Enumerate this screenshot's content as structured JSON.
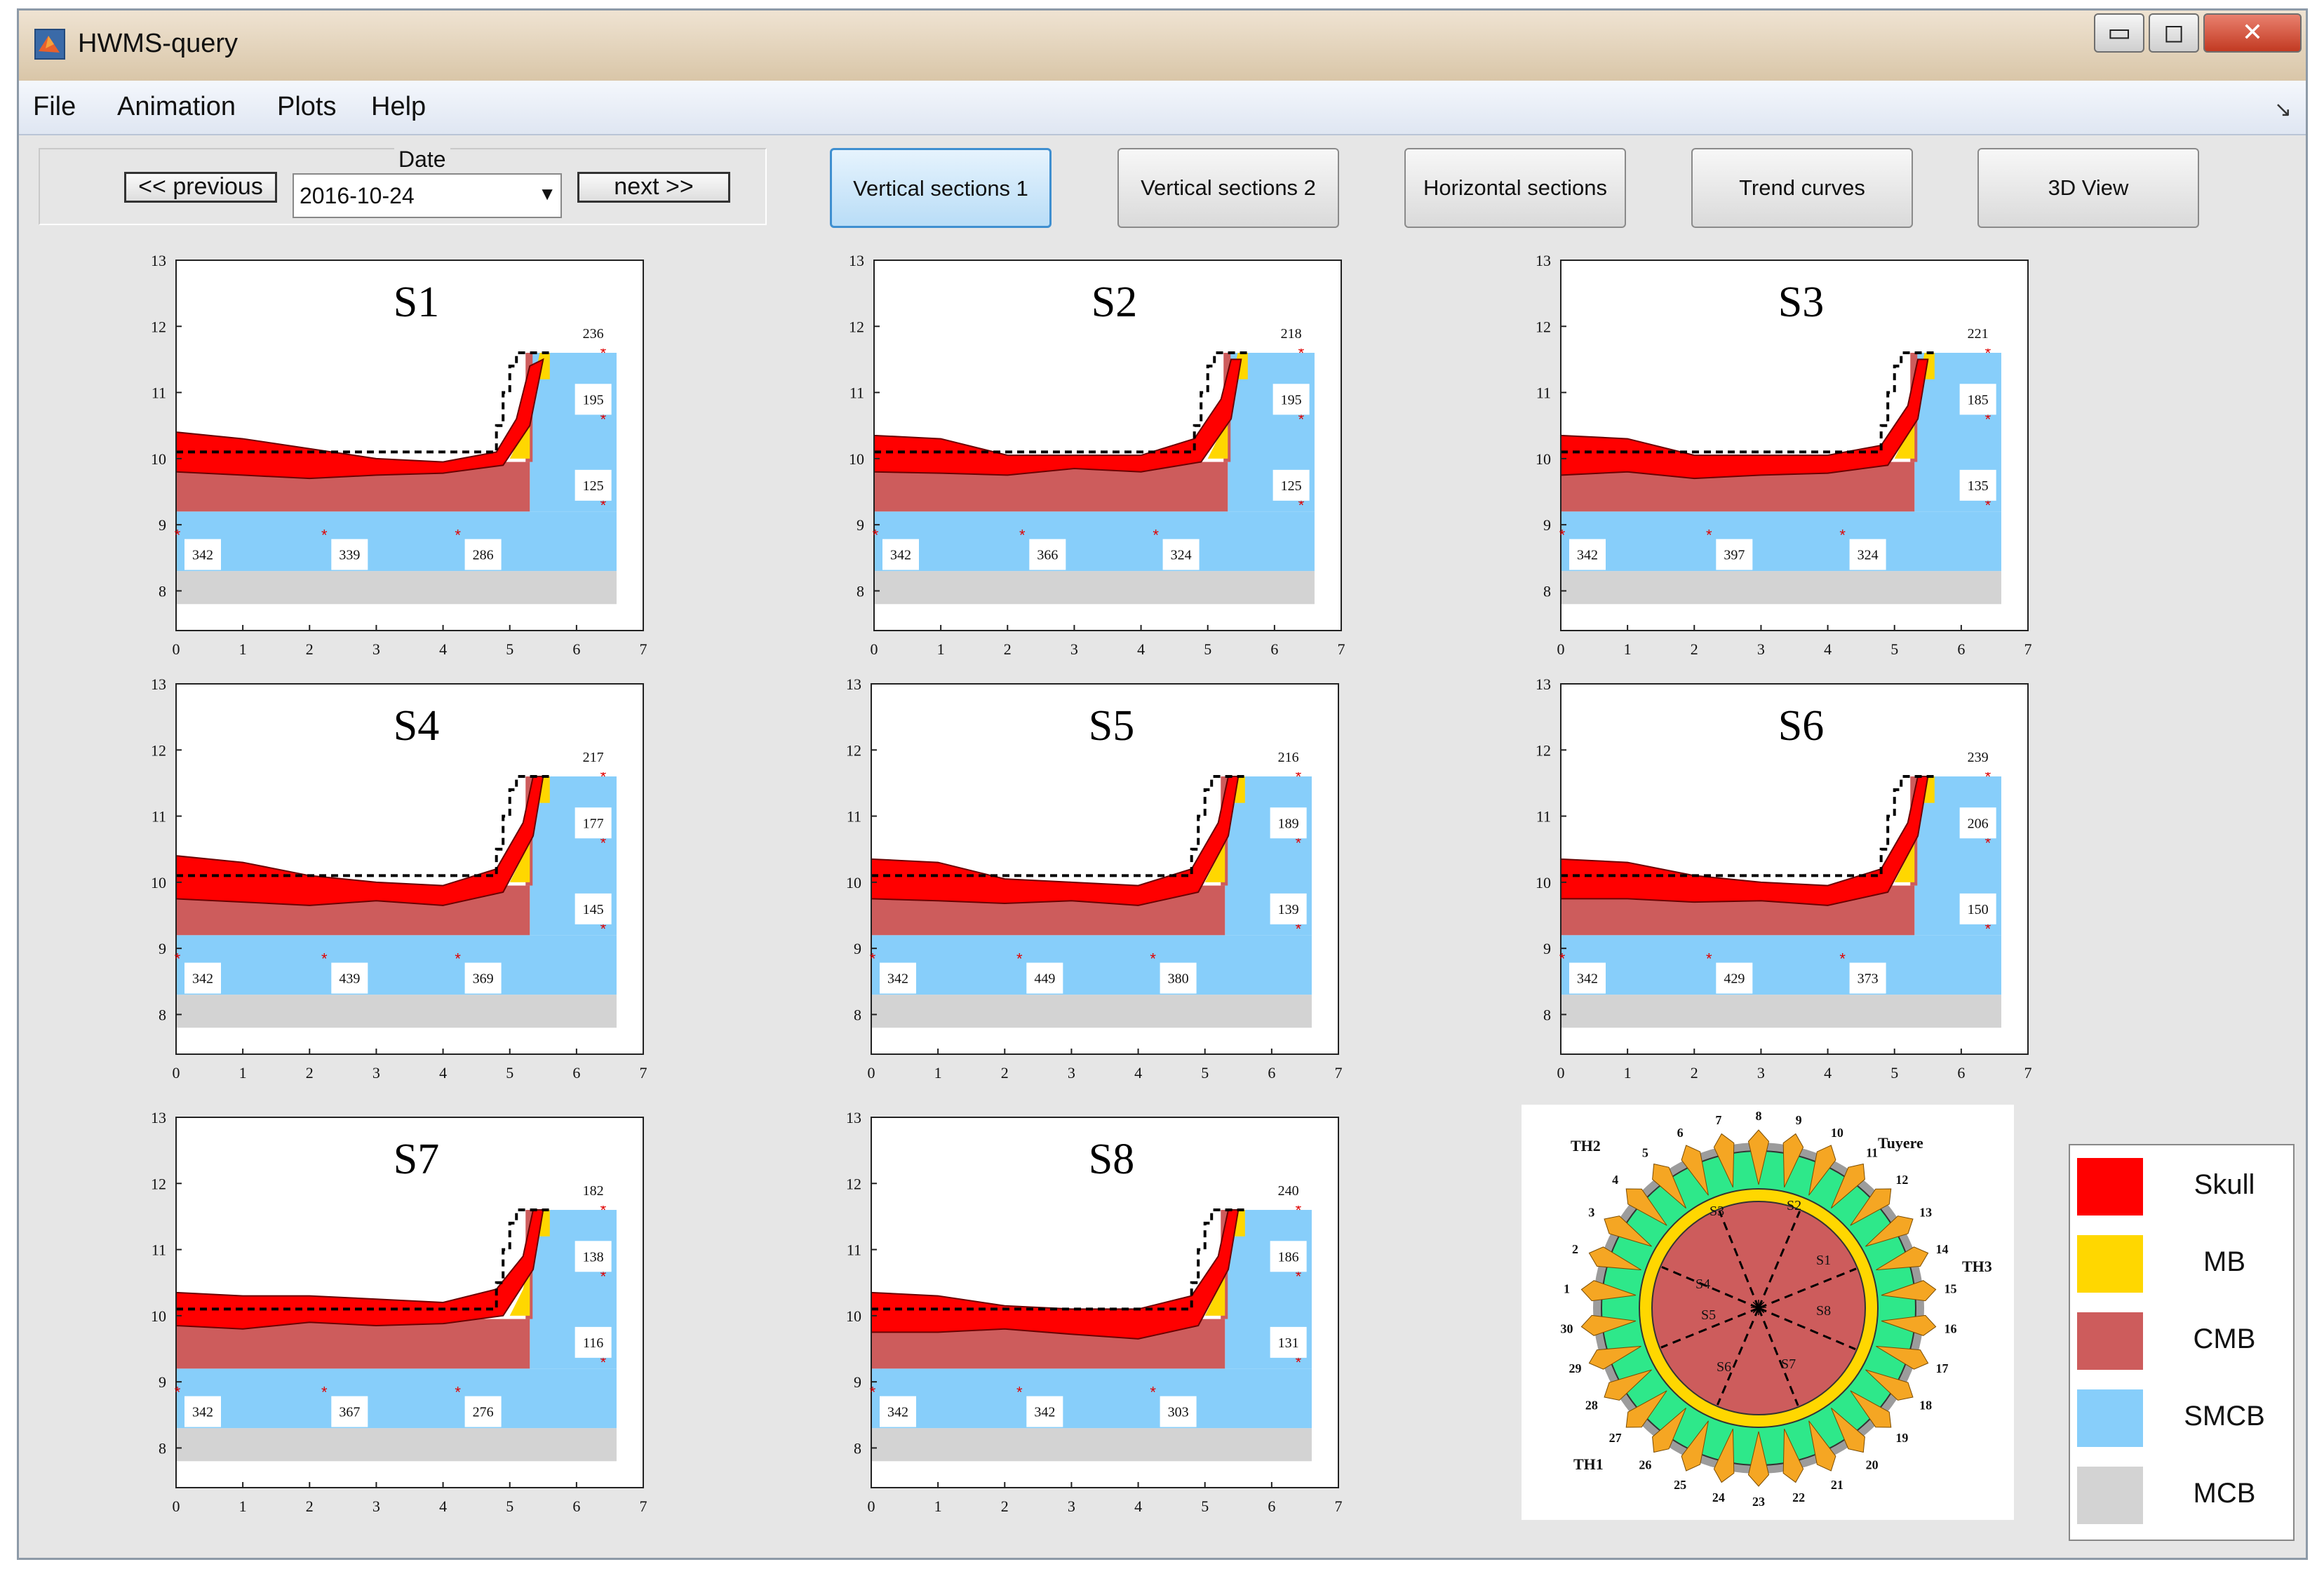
{
  "window": {
    "title": "HWMS-query",
    "controls": {
      "minimize": "▭",
      "maximize": "◻",
      "close": "✕"
    }
  },
  "menu": [
    "File",
    "Animation",
    "Plots",
    "Help"
  ],
  "toolbar": {
    "date_label": "Date",
    "previous_label": "<< previous",
    "date_value": "2016-10-24",
    "next_label": "next >>"
  },
  "tabs": [
    {
      "label": "Vertical sections 1",
      "active": true
    },
    {
      "label": "Vertical sections 2",
      "active": false
    },
    {
      "label": "Horizontal sections",
      "active": false
    },
    {
      "label": "Trend curves",
      "active": false
    },
    {
      "label": "3D View",
      "active": false
    }
  ],
  "colors": {
    "skull": "#ff0000",
    "mb": "#ffd700",
    "cmb": "#cd5c5c",
    "smcb": "#87cefa",
    "mcb": "#d3d3d3",
    "cooling_box": "#2ee88a",
    "tuyere": "#f5a623"
  },
  "legend": [
    {
      "label": "Skull",
      "color": "#ff0000"
    },
    {
      "label": "MB",
      "color": "#ffd700"
    },
    {
      "label": "CMB",
      "color": "#cd5c5c"
    },
    {
      "label": "SMCB",
      "color": "#87cefa"
    },
    {
      "label": "MCB",
      "color": "#d3d3d3"
    }
  ],
  "chart_data": [
    {
      "type": "area",
      "title": "S1",
      "xlim": [
        0,
        7
      ],
      "ylim": [
        7.4,
        13
      ],
      "xticks": [
        0,
        1,
        2,
        3,
        4,
        5,
        6,
        7
      ],
      "yticks": [
        8,
        9,
        10,
        11,
        12,
        13
      ],
      "wall_readings": [
        {
          "label": "236",
          "y": 11.6
        },
        {
          "label": "195",
          "y": 10.6
        },
        {
          "label": "125",
          "y": 9.3
        }
      ],
      "bottom_readings": [
        {
          "label": "342",
          "x": 0
        },
        {
          "label": "339",
          "x": 2.2
        },
        {
          "label": "286",
          "x": 4.2
        }
      ],
      "skull_top": [
        [
          0,
          10.4
        ],
        [
          1,
          10.3
        ],
        [
          2,
          10.15
        ],
        [
          3,
          10.0
        ],
        [
          4,
          9.95
        ],
        [
          4.8,
          10.1
        ],
        [
          5.1,
          10.6
        ],
        [
          5.3,
          11.4
        ]
      ],
      "skull_bottom": [
        [
          0,
          9.8
        ],
        [
          1,
          9.75
        ],
        [
          2,
          9.7
        ],
        [
          3,
          9.75
        ],
        [
          4,
          9.78
        ],
        [
          4.9,
          9.9
        ],
        [
          5.3,
          10.5
        ],
        [
          5.5,
          11.5
        ]
      ],
      "dashed_profile": [
        [
          0,
          10.1
        ],
        [
          4.8,
          10.1
        ],
        [
          4.8,
          10.5
        ],
        [
          4.9,
          10.5
        ],
        [
          4.9,
          11.0
        ],
        [
          5.0,
          11.0
        ],
        [
          5.0,
          11.4
        ],
        [
          5.1,
          11.4
        ],
        [
          5.1,
          11.6
        ],
        [
          5.6,
          11.6
        ]
      ]
    },
    {
      "type": "area",
      "title": "S2",
      "xlim": [
        0,
        7
      ],
      "ylim": [
        7.4,
        13
      ],
      "xticks": [
        0,
        1,
        2,
        3,
        4,
        5,
        6,
        7
      ],
      "yticks": [
        8,
        9,
        10,
        11,
        12,
        13
      ],
      "wall_readings": [
        {
          "label": "218",
          "y": 11.6
        },
        {
          "label": "195",
          "y": 10.6
        },
        {
          "label": "125",
          "y": 9.3
        }
      ],
      "bottom_readings": [
        {
          "label": "342",
          "x": 0
        },
        {
          "label": "366",
          "x": 2.2
        },
        {
          "label": "324",
          "x": 4.2
        }
      ],
      "skull_top": [
        [
          0,
          10.35
        ],
        [
          1,
          10.3
        ],
        [
          2,
          10.05
        ],
        [
          3,
          10.05
        ],
        [
          4,
          10.05
        ],
        [
          4.8,
          10.3
        ],
        [
          5.2,
          10.9
        ],
        [
          5.35,
          11.5
        ]
      ],
      "skull_bottom": [
        [
          0,
          9.8
        ],
        [
          1,
          9.78
        ],
        [
          2,
          9.75
        ],
        [
          3,
          9.85
        ],
        [
          4,
          9.8
        ],
        [
          4.9,
          9.95
        ],
        [
          5.35,
          10.6
        ],
        [
          5.5,
          11.5
        ]
      ],
      "dashed_profile": [
        [
          0,
          10.1
        ],
        [
          4.8,
          10.1
        ],
        [
          4.8,
          10.5
        ],
        [
          4.9,
          10.5
        ],
        [
          4.9,
          11.0
        ],
        [
          5.0,
          11.0
        ],
        [
          5.0,
          11.4
        ],
        [
          5.1,
          11.4
        ],
        [
          5.1,
          11.6
        ],
        [
          5.6,
          11.6
        ]
      ]
    },
    {
      "type": "area",
      "title": "S3",
      "xlim": [
        0,
        7
      ],
      "ylim": [
        7.4,
        13
      ],
      "xticks": [
        0,
        1,
        2,
        3,
        4,
        5,
        6,
        7
      ],
      "yticks": [
        8,
        9,
        10,
        11,
        12,
        13
      ],
      "wall_readings": [
        {
          "label": "221",
          "y": 11.6
        },
        {
          "label": "185",
          "y": 10.6
        },
        {
          "label": "135",
          "y": 9.3
        }
      ],
      "bottom_readings": [
        {
          "label": "342",
          "x": 0
        },
        {
          "label": "397",
          "x": 2.2
        },
        {
          "label": "324",
          "x": 4.2
        }
      ],
      "skull_top": [
        [
          0,
          10.35
        ],
        [
          1,
          10.3
        ],
        [
          2,
          10.05
        ],
        [
          3,
          10.05
        ],
        [
          4,
          10.05
        ],
        [
          4.8,
          10.2
        ],
        [
          5.2,
          10.8
        ],
        [
          5.35,
          11.5
        ]
      ],
      "skull_bottom": [
        [
          0,
          9.75
        ],
        [
          1,
          9.8
        ],
        [
          2,
          9.7
        ],
        [
          3,
          9.75
        ],
        [
          4,
          9.78
        ],
        [
          4.9,
          9.9
        ],
        [
          5.35,
          10.6
        ],
        [
          5.5,
          11.5
        ]
      ],
      "dashed_profile": [
        [
          0,
          10.1
        ],
        [
          4.8,
          10.1
        ],
        [
          4.8,
          10.5
        ],
        [
          4.9,
          10.5
        ],
        [
          4.9,
          11.0
        ],
        [
          5.0,
          11.0
        ],
        [
          5.0,
          11.4
        ],
        [
          5.1,
          11.4
        ],
        [
          5.1,
          11.6
        ],
        [
          5.6,
          11.6
        ]
      ]
    },
    {
      "type": "area",
      "title": "S4",
      "xlim": [
        0,
        7
      ],
      "ylim": [
        7.4,
        13
      ],
      "xticks": [
        0,
        1,
        2,
        3,
        4,
        5,
        6,
        7
      ],
      "yticks": [
        8,
        9,
        10,
        11,
        12,
        13
      ],
      "wall_readings": [
        {
          "label": "217",
          "y": 11.6
        },
        {
          "label": "177",
          "y": 10.6
        },
        {
          "label": "145",
          "y": 9.3
        }
      ],
      "bottom_readings": [
        {
          "label": "342",
          "x": 0
        },
        {
          "label": "439",
          "x": 2.2
        },
        {
          "label": "369",
          "x": 4.2
        }
      ],
      "skull_top": [
        [
          0,
          10.4
        ],
        [
          1,
          10.3
        ],
        [
          2,
          10.1
        ],
        [
          3,
          10.0
        ],
        [
          4,
          9.95
        ],
        [
          4.8,
          10.2
        ],
        [
          5.2,
          10.9
        ],
        [
          5.35,
          11.6
        ]
      ],
      "skull_bottom": [
        [
          0,
          9.75
        ],
        [
          1,
          9.7
        ],
        [
          2,
          9.65
        ],
        [
          3,
          9.72
        ],
        [
          4,
          9.65
        ],
        [
          4.9,
          9.85
        ],
        [
          5.35,
          10.7
        ],
        [
          5.5,
          11.6
        ]
      ],
      "dashed_profile": [
        [
          0,
          10.1
        ],
        [
          4.8,
          10.1
        ],
        [
          4.8,
          10.5
        ],
        [
          4.9,
          10.5
        ],
        [
          4.9,
          11.0
        ],
        [
          5.0,
          11.0
        ],
        [
          5.0,
          11.4
        ],
        [
          5.1,
          11.4
        ],
        [
          5.1,
          11.6
        ],
        [
          5.6,
          11.6
        ]
      ]
    },
    {
      "type": "area",
      "title": "S5",
      "xlim": [
        0,
        7
      ],
      "ylim": [
        7.4,
        13
      ],
      "xticks": [
        0,
        1,
        2,
        3,
        4,
        5,
        6,
        7
      ],
      "yticks": [
        8,
        9,
        10,
        11,
        12,
        13
      ],
      "wall_readings": [
        {
          "label": "216",
          "y": 11.6
        },
        {
          "label": "189",
          "y": 10.6
        },
        {
          "label": "139",
          "y": 9.3
        }
      ],
      "bottom_readings": [
        {
          "label": "342",
          "x": 0
        },
        {
          "label": "449",
          "x": 2.2
        },
        {
          "label": "380",
          "x": 4.2
        }
      ],
      "skull_top": [
        [
          0,
          10.35
        ],
        [
          1,
          10.3
        ],
        [
          2,
          10.05
        ],
        [
          3,
          10.0
        ],
        [
          4,
          9.95
        ],
        [
          4.8,
          10.2
        ],
        [
          5.2,
          10.9
        ],
        [
          5.35,
          11.6
        ]
      ],
      "skull_bottom": [
        [
          0,
          9.75
        ],
        [
          1,
          9.72
        ],
        [
          2,
          9.68
        ],
        [
          3,
          9.72
        ],
        [
          4,
          9.65
        ],
        [
          4.9,
          9.85
        ],
        [
          5.35,
          10.7
        ],
        [
          5.5,
          11.6
        ]
      ],
      "dashed_profile": [
        [
          0,
          10.1
        ],
        [
          4.8,
          10.1
        ],
        [
          4.8,
          10.5
        ],
        [
          4.9,
          10.5
        ],
        [
          4.9,
          11.0
        ],
        [
          5.0,
          11.0
        ],
        [
          5.0,
          11.4
        ],
        [
          5.1,
          11.4
        ],
        [
          5.1,
          11.6
        ],
        [
          5.6,
          11.6
        ]
      ]
    },
    {
      "type": "area",
      "title": "S6",
      "xlim": [
        0,
        7
      ],
      "ylim": [
        7.4,
        13
      ],
      "xticks": [
        0,
        1,
        2,
        3,
        4,
        5,
        6,
        7
      ],
      "yticks": [
        8,
        9,
        10,
        11,
        12,
        13
      ],
      "wall_readings": [
        {
          "label": "239",
          "y": 11.6
        },
        {
          "label": "206",
          "y": 10.6
        },
        {
          "label": "150",
          "y": 9.3
        }
      ],
      "bottom_readings": [
        {
          "label": "342",
          "x": 0
        },
        {
          "label": "429",
          "x": 2.2
        },
        {
          "label": "373",
          "x": 4.2
        }
      ],
      "skull_top": [
        [
          0,
          10.35
        ],
        [
          1,
          10.3
        ],
        [
          2,
          10.1
        ],
        [
          3,
          10.0
        ],
        [
          4,
          9.95
        ],
        [
          4.8,
          10.2
        ],
        [
          5.2,
          10.9
        ],
        [
          5.35,
          11.6
        ]
      ],
      "skull_bottom": [
        [
          0,
          9.75
        ],
        [
          1,
          9.75
        ],
        [
          2,
          9.7
        ],
        [
          3,
          9.72
        ],
        [
          4,
          9.65
        ],
        [
          4.9,
          9.85
        ],
        [
          5.35,
          10.7
        ],
        [
          5.5,
          11.6
        ]
      ],
      "dashed_profile": [
        [
          0,
          10.1
        ],
        [
          4.8,
          10.1
        ],
        [
          4.8,
          10.5
        ],
        [
          4.9,
          10.5
        ],
        [
          4.9,
          11.0
        ],
        [
          5.0,
          11.0
        ],
        [
          5.0,
          11.4
        ],
        [
          5.1,
          11.4
        ],
        [
          5.1,
          11.6
        ],
        [
          5.6,
          11.6
        ]
      ]
    },
    {
      "type": "area",
      "title": "S7",
      "xlim": [
        0,
        7
      ],
      "ylim": [
        7.4,
        13
      ],
      "xticks": [
        0,
        1,
        2,
        3,
        4,
        5,
        6,
        7
      ],
      "yticks": [
        8,
        9,
        10,
        11,
        12,
        13
      ],
      "wall_readings": [
        {
          "label": "182",
          "y": 11.6
        },
        {
          "label": "138",
          "y": 10.6
        },
        {
          "label": "116",
          "y": 9.3
        }
      ],
      "bottom_readings": [
        {
          "label": "342",
          "x": 0
        },
        {
          "label": "367",
          "x": 2.2
        },
        {
          "label": "276",
          "x": 4.2
        }
      ],
      "skull_top": [
        [
          0,
          10.35
        ],
        [
          1,
          10.3
        ],
        [
          2,
          10.3
        ],
        [
          3,
          10.25
        ],
        [
          4,
          10.2
        ],
        [
          4.8,
          10.4
        ],
        [
          5.2,
          10.9
        ],
        [
          5.35,
          11.6
        ]
      ],
      "skull_bottom": [
        [
          0,
          9.85
        ],
        [
          1,
          9.8
        ],
        [
          2,
          9.9
        ],
        [
          3,
          9.85
        ],
        [
          4,
          9.88
        ],
        [
          4.9,
          10.0
        ],
        [
          5.35,
          10.7
        ],
        [
          5.5,
          11.6
        ]
      ],
      "dashed_profile": [
        [
          0,
          10.1
        ],
        [
          4.8,
          10.1
        ],
        [
          4.8,
          10.5
        ],
        [
          4.9,
          10.5
        ],
        [
          4.9,
          11.0
        ],
        [
          5.0,
          11.0
        ],
        [
          5.0,
          11.4
        ],
        [
          5.1,
          11.4
        ],
        [
          5.1,
          11.6
        ],
        [
          5.6,
          11.6
        ]
      ]
    },
    {
      "type": "area",
      "title": "S8",
      "xlim": [
        0,
        7
      ],
      "ylim": [
        7.4,
        13
      ],
      "xticks": [
        0,
        1,
        2,
        3,
        4,
        5,
        6,
        7
      ],
      "yticks": [
        8,
        9,
        10,
        11,
        12,
        13
      ],
      "wall_readings": [
        {
          "label": "240",
          "y": 11.6
        },
        {
          "label": "186",
          "y": 10.6
        },
        {
          "label": "131",
          "y": 9.3
        }
      ],
      "bottom_readings": [
        {
          "label": "342",
          "x": 0
        },
        {
          "label": "342",
          "x": 2.2
        },
        {
          "label": "303",
          "x": 4.2
        }
      ],
      "skull_top": [
        [
          0,
          10.35
        ],
        [
          1,
          10.3
        ],
        [
          2,
          10.15
        ],
        [
          3,
          10.1
        ],
        [
          4,
          10.1
        ],
        [
          4.8,
          10.3
        ],
        [
          5.2,
          10.9
        ],
        [
          5.35,
          11.6
        ]
      ],
      "skull_bottom": [
        [
          0,
          9.75
        ],
        [
          1,
          9.75
        ],
        [
          2,
          9.8
        ],
        [
          3,
          9.72
        ],
        [
          4,
          9.65
        ],
        [
          4.9,
          9.85
        ],
        [
          5.35,
          10.7
        ],
        [
          5.5,
          11.6
        ]
      ],
      "dashed_profile": [
        [
          0,
          10.1
        ],
        [
          4.8,
          10.1
        ],
        [
          4.8,
          10.5
        ],
        [
          4.9,
          10.5
        ],
        [
          4.9,
          11.0
        ],
        [
          5.0,
          11.0
        ],
        [
          5.0,
          11.4
        ],
        [
          5.1,
          11.4
        ],
        [
          5.1,
          11.6
        ],
        [
          5.6,
          11.6
        ]
      ]
    }
  ],
  "cross_section": {
    "tuyere_label": "Tuyere",
    "thermocouple_labels": [
      "TH1",
      "TH2",
      "TH3"
    ],
    "section_labels": [
      "S1",
      "S2",
      "S3",
      "S4",
      "S5",
      "S6",
      "S7",
      "S8"
    ],
    "tuyere_numbers": [
      "1",
      "2",
      "3",
      "4",
      "5",
      "6",
      "7",
      "8",
      "9",
      "10",
      "11",
      "12",
      "13",
      "14",
      "15",
      "16",
      "17",
      "18",
      "19",
      "20",
      "21",
      "22",
      "23",
      "24",
      "25",
      "26",
      "27",
      "28",
      "29",
      "30"
    ]
  },
  "layers": {
    "cmb_top": 9.95,
    "smcb_top": 9.2,
    "mcb_top": 8.3,
    "bottom": 7.8,
    "wall_smcb_x": 5.3,
    "wall_end_x": 6.6,
    "top": 11.6
  }
}
